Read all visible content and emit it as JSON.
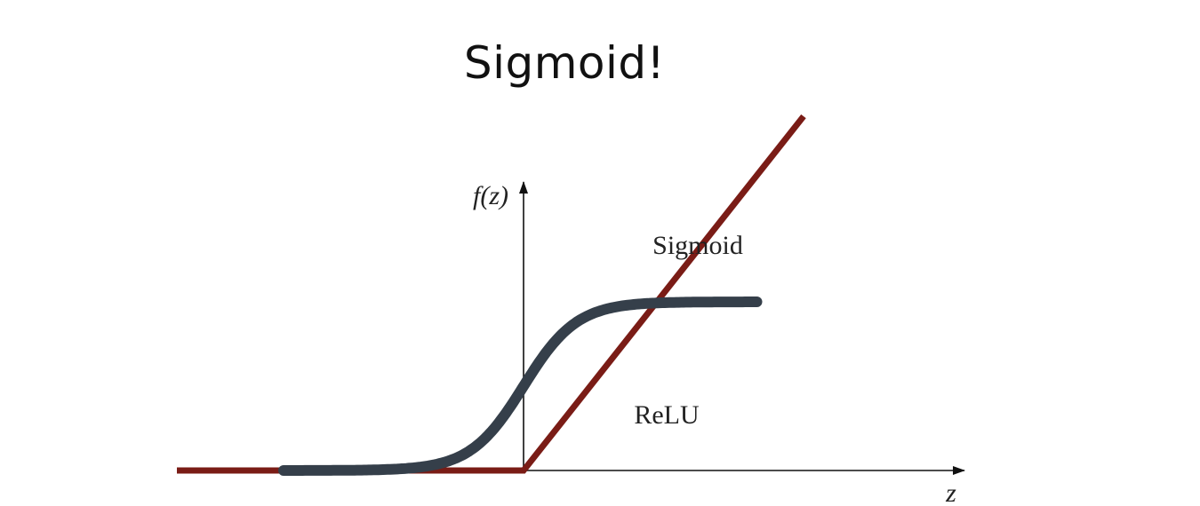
{
  "slide": {
    "title": "Sigmoid!"
  },
  "chart_data": {
    "type": "line",
    "title": "Sigmoid!",
    "xlabel": "z",
    "ylabel": "f(z)",
    "xlim": [
      -2.6,
      3.4
    ],
    "ylim": [
      0,
      1.75
    ],
    "grid": false,
    "series": [
      {
        "name": "Sigmoid",
        "function": "1 / (1 + exp(-5 z))",
        "x_range": [
          -1.8,
          1.75
        ],
        "color": "#353f4a"
      },
      {
        "name": "ReLU",
        "function": "max(0, z)",
        "x_range": [
          -2.6,
          2.1
        ],
        "color": "#7a1c16"
      }
    ],
    "annotations": [
      {
        "text": "Sigmoid",
        "series": "Sigmoid",
        "position": "above curve, upper right"
      },
      {
        "text": "ReLU",
        "series": "ReLU",
        "position": "right of line"
      }
    ],
    "colors": {
      "axis": "#111111",
      "sigmoid": "#353f4a",
      "relu": "#7a1c16"
    }
  }
}
